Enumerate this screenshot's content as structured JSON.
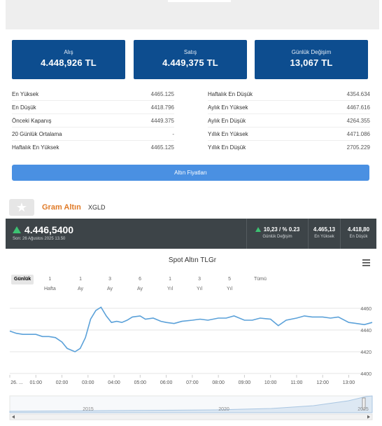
{
  "cards": {
    "bid": {
      "label": "Alış",
      "value": "4.448,926 TL"
    },
    "ask": {
      "label": "Satış",
      "value": "4.449,375 TL"
    },
    "change": {
      "label": "Günlük Değişim",
      "value": "13,067 TL"
    }
  },
  "stats_left": [
    {
      "label": "En Yüksek",
      "value": "4465.125"
    },
    {
      "label": "En Düşük",
      "value": "4418.796"
    },
    {
      "label": "Önceki Kapanış",
      "value": "4449.375"
    },
    {
      "label": "20 Günlük Ortalama",
      "value": "-"
    },
    {
      "label": "Haftalık En Yüksek",
      "value": "4465.125"
    }
  ],
  "stats_right": [
    {
      "label": "Haftalık En Düşük",
      "value": "4354.634"
    },
    {
      "label": "Aylık En Yüksek",
      "value": "4467.616"
    },
    {
      "label": "Aylık En Düşük",
      "value": "4264.355"
    },
    {
      "label": "Yıllık En Yüksek",
      "value": "4471.086"
    },
    {
      "label": "Yıllık En Düşük",
      "value": "2705.229"
    }
  ],
  "prices_button": "Altın Fiyatları",
  "instrument": {
    "name": "Gram Altın",
    "code": "XGLD"
  },
  "quote": {
    "price": "4.446,5400",
    "last_update": "Son: 26 Ağustos 2025 13.50",
    "change_value": "10,23 / % 0.23",
    "change_label": "Günlük Değişim",
    "high_value": "4.465,13",
    "high_label": "En Yüksek",
    "low_value": "4.418,80",
    "low_label": "En Düşük"
  },
  "chart_title": "Spot Altın TLGr",
  "range_buttons": [
    "Günlük",
    "1 Hafta",
    "1 Ay",
    "3 Ay",
    "6 Ay",
    "1 Yıl",
    "3 Yıl",
    "5 Yıl",
    "Tümü"
  ],
  "active_range": "Günlük",
  "colors": {
    "card_blue": "#0d4d8f",
    "button_blue": "#4a90e2",
    "line": "#5ba1d9",
    "up": "#3cc272",
    "title_orange": "#e07b28"
  },
  "chart_data": {
    "type": "line",
    "title": "Spot Altın TLGr",
    "x_tick_labels": [
      "26. ...",
      "01:00",
      "02:00",
      "03:00",
      "04:00",
      "05:00",
      "06:00",
      "07:00",
      "08:00",
      "09:00",
      "10:00",
      "11:00",
      "12:00",
      "13:00"
    ],
    "y_tick_labels": [
      "4460",
      "4440",
      "4420",
      "4400"
    ],
    "ylim": [
      4400,
      4460
    ],
    "series": [
      {
        "x": [
          0,
          0.25,
          0.5,
          0.75,
          1.0,
          1.25,
          1.5,
          1.75,
          2.0,
          2.2,
          2.5,
          2.7,
          2.9,
          3.1,
          3.3,
          3.5,
          3.7,
          3.9,
          4.1,
          4.3,
          4.5,
          4.7,
          5.0,
          5.2,
          5.5,
          5.8,
          6.0,
          6.3,
          6.6,
          7.0,
          7.3,
          7.6,
          8.0,
          8.3,
          8.6,
          9.0,
          9.3,
          9.6,
          10.0,
          10.3,
          10.6,
          11.0,
          11.3,
          11.6,
          12.0,
          12.3,
          12.6,
          13.0,
          13.3,
          13.6,
          13.9
        ],
        "y": [
          4439,
          4437,
          4436,
          4436,
          4436,
          4434,
          4434,
          4433,
          4429,
          4423,
          4420,
          4423,
          4433,
          4450,
          4458,
          4461,
          4453,
          4447,
          4448,
          4447,
          4449,
          4452,
          4453,
          4450,
          4451,
          4448,
          4447,
          4446,
          4448,
          4449,
          4450,
          4449,
          4451,
          4451,
          4453,
          4449,
          4449,
          4451,
          4450,
          4444,
          4449,
          4451,
          4453,
          4452,
          4452,
          4451,
          4452,
          4447,
          4446,
          4445,
          4447
        ]
      }
    ],
    "navigator_labels": [
      "2015",
      "2020",
      "2025"
    ],
    "grid": true
  }
}
